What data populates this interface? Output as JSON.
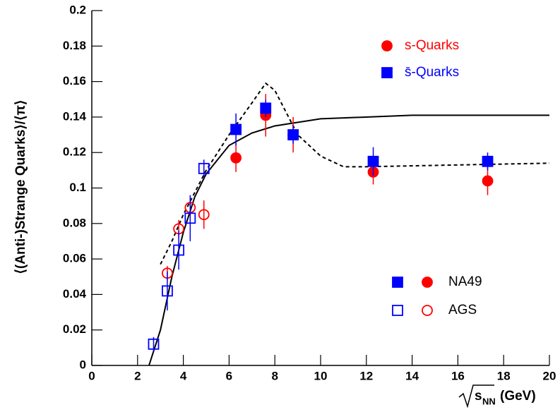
{
  "chart_data": {
    "type": "scatter",
    "y_label": "⟨(Anti-)Strange Quarks⟩/⟨π⟩",
    "x_label": {
      "root": "s",
      "sub": "NN",
      "unit": "(GeV)"
    },
    "xlim": [
      0,
      20
    ],
    "xticks": [
      0,
      2,
      4,
      6,
      8,
      10,
      12,
      14,
      16,
      18,
      20
    ],
    "ylim": [
      0,
      0.2
    ],
    "yticks": [
      0,
      0.02,
      0.04,
      0.06,
      0.08,
      0.1,
      0.12,
      0.14,
      0.16,
      0.18,
      0.2
    ],
    "series": [
      {
        "name": "s-Quarks",
        "color": "#ff0000",
        "marker": "circle",
        "data": [
          {
            "filled": true,
            "x": [
              6.3,
              7.6,
              8.8,
              12.3,
              17.3
            ],
            "values": [
              0.117,
              0.141,
              0.13,
              0.109,
              0.104
            ],
            "errors": [
              0.008,
              0.012,
              0.01,
              0.007,
              0.008
            ]
          },
          {
            "filled": false,
            "x": [
              3.3,
              3.8,
              4.3,
              4.9
            ],
            "values": [
              0.052,
              0.077,
              0.089,
              0.085
            ],
            "errors": [
              0.004,
              0.005,
              0.005,
              0.008
            ]
          }
        ]
      },
      {
        "name": "s̄-Quarks",
        "color": "#0000ff",
        "marker": "square",
        "data": [
          {
            "filled": true,
            "x": [
              6.3,
              7.6,
              8.8,
              12.3,
              17.3
            ],
            "values": [
              0.133,
              0.145,
              0.13,
              0.115,
              0.115
            ],
            "errors": [
              0.009,
              0.005,
              0.005,
              0.008,
              0.005
            ]
          },
          {
            "filled": false,
            "x": [
              2.7,
              3.3,
              3.8,
              4.3,
              4.9
            ],
            "values": [
              0.012,
              0.042,
              0.065,
              0.083,
              0.111
            ],
            "errors": [
              0.004,
              0.011,
              0.011,
              0.013,
              0.005
            ]
          }
        ]
      }
    ],
    "groups": [
      {
        "name": "NA49",
        "filled": true
      },
      {
        "name": "AGS",
        "filled": false
      }
    ],
    "curves": [
      {
        "style": "solid",
        "x": [
          2.5,
          3.0,
          3.5,
          4.0,
          4.5,
          5.0,
          6.0,
          7.0,
          8.0,
          10.0,
          14.0,
          20.0
        ],
        "values": [
          0,
          0.02,
          0.05,
          0.075,
          0.095,
          0.108,
          0.124,
          0.131,
          0.135,
          0.139,
          0.141,
          0.141
        ]
      },
      {
        "style": "dashed",
        "x": [
          3.0,
          3.5,
          4.0,
          5.0,
          6.0,
          7.0,
          7.6,
          8.0,
          9.0,
          10.0,
          11.0,
          12.0,
          16.0,
          20.0
        ],
        "values": [
          0.057,
          0.07,
          0.085,
          0.11,
          0.13,
          0.148,
          0.159,
          0.155,
          0.13,
          0.118,
          0.112,
          0.112,
          0.113,
          0.114
        ]
      }
    ]
  }
}
